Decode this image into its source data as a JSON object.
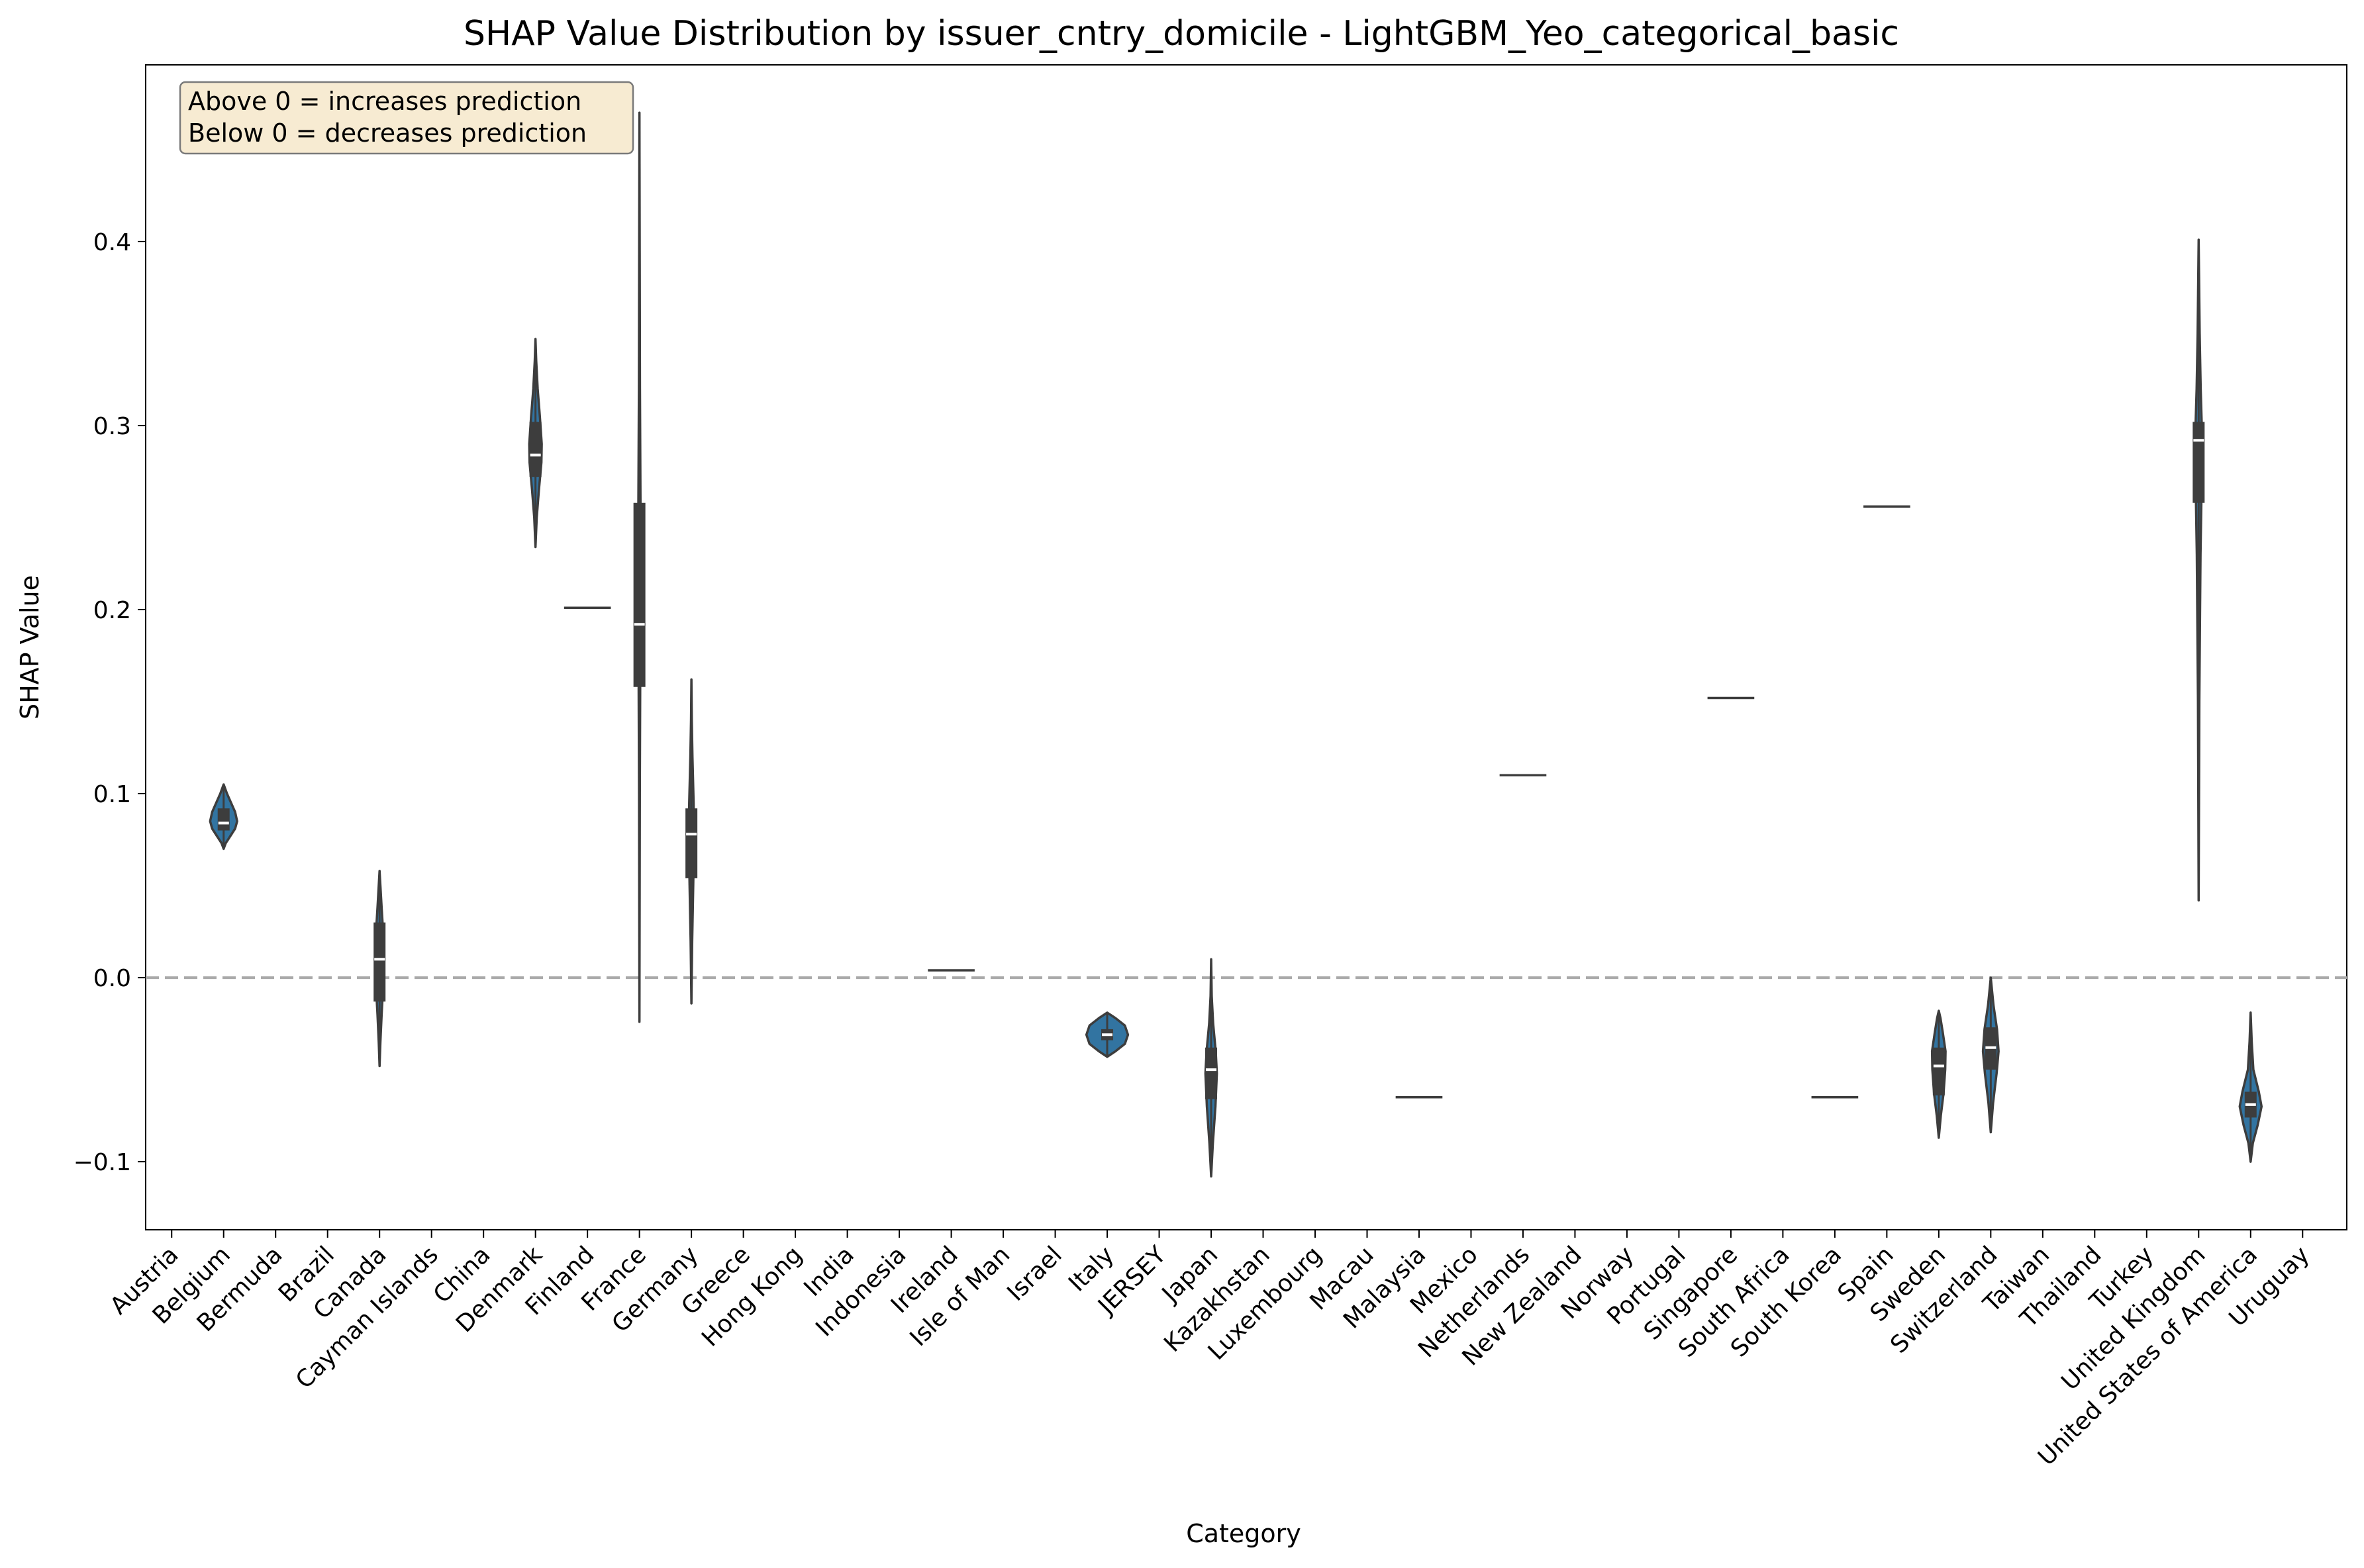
{
  "chart_data": {
    "type": "violin",
    "title": "SHAP Value Distribution by issuer_cntry_domicile - LightGBM_Yeo_categorical_basic",
    "xlabel": "Category",
    "ylabel": "SHAP Value",
    "ylim": [
      -0.137,
      0.496
    ],
    "yticks": [
      -0.1,
      0.0,
      0.1,
      0.2,
      0.3,
      0.4
    ],
    "ytick_labels": [
      "−0.1",
      "0.0",
      "0.1",
      "0.2",
      "0.3",
      "0.4"
    ],
    "reference_line": {
      "y": 0.0,
      "style": "dashed",
      "color": "#aaaaaa"
    },
    "annotation": {
      "line1": "Above 0 = increases prediction",
      "line2": "Below 0 = decreases prediction",
      "placement": "top-left"
    },
    "colors": {
      "violin": "#3274a1",
      "box": "#3d3d3d",
      "median": "#ffffff",
      "annotation_bg": "#f7ebd2"
    },
    "categories": [
      "Austria",
      "Belgium",
      "Bermuda",
      "Brazil",
      "Canada",
      "Cayman Islands",
      "China",
      "Denmark",
      "Finland",
      "France",
      "Germany",
      "Greece",
      "Hong Kong",
      "India",
      "Indonesia",
      "Ireland",
      "Isle of Man",
      "Israel",
      "Italy",
      "JERSEY",
      "Japan",
      "Kazakhstan",
      "Luxembourg",
      "Macau",
      "Malaysia",
      "Mexico",
      "Netherlands",
      "New Zealand",
      "Norway",
      "Portugal",
      "Singapore",
      "South Africa",
      "South Korea",
      "Spain",
      "Sweden",
      "Switzerland",
      "Taiwan",
      "Thailand",
      "Turkey",
      "United Kingdom",
      "United States of America",
      "Uruguay"
    ],
    "distributions": [
      {
        "category": "Belgium",
        "shape": "violin",
        "min": 0.07,
        "max": 0.105,
        "q1": 0.08,
        "median": 0.084,
        "q3": 0.092,
        "maxw": 0.52,
        "profile": [
          [
            0.07,
            0
          ],
          [
            0.073,
            0.15
          ],
          [
            0.077,
            0.5
          ],
          [
            0.081,
            0.85
          ],
          [
            0.085,
            1
          ],
          [
            0.09,
            0.85
          ],
          [
            0.095,
            0.55
          ],
          [
            0.1,
            0.25
          ],
          [
            0.105,
            0
          ]
        ]
      },
      {
        "category": "Canada",
        "shape": "violin",
        "min": -0.048,
        "max": 0.058,
        "q1": -0.013,
        "median": 0.01,
        "q3": 0.03,
        "maxw": 0.16,
        "profile": [
          [
            -0.048,
            0
          ],
          [
            -0.035,
            0.2
          ],
          [
            -0.02,
            0.5
          ],
          [
            -0.005,
            0.85
          ],
          [
            0.01,
            1
          ],
          [
            0.025,
            0.85
          ],
          [
            0.038,
            0.5
          ],
          [
            0.05,
            0.2
          ],
          [
            0.058,
            0
          ]
        ]
      },
      {
        "category": "Denmark",
        "shape": "violin",
        "min": 0.234,
        "max": 0.347,
        "q1": 0.272,
        "median": 0.284,
        "q3": 0.302,
        "maxw": 0.24,
        "profile": [
          [
            0.234,
            0
          ],
          [
            0.25,
            0.2
          ],
          [
            0.265,
            0.55
          ],
          [
            0.28,
            0.95
          ],
          [
            0.29,
            1
          ],
          [
            0.305,
            0.7
          ],
          [
            0.32,
            0.35
          ],
          [
            0.335,
            0.12
          ],
          [
            0.347,
            0
          ]
        ]
      },
      {
        "category": "Finland",
        "shape": "line",
        "value": 0.201,
        "width": 0.9
      },
      {
        "category": "France",
        "shape": "violin",
        "min": -0.024,
        "max": 0.47,
        "q1": 0.158,
        "median": 0.192,
        "q3": 0.258,
        "maxw": 0.1,
        "profile": [
          [
            -0.024,
            0
          ],
          [
            0.1,
            0.15
          ],
          [
            0.18,
            0.35
          ],
          [
            0.22,
            0.5
          ],
          [
            0.26,
            0.4
          ],
          [
            0.32,
            0.2
          ],
          [
            0.47,
            0
          ]
        ]
      },
      {
        "category": "Germany",
        "shape": "violin",
        "min": -0.014,
        "max": 0.162,
        "q1": 0.054,
        "median": 0.078,
        "q3": 0.092,
        "maxw": 0.1,
        "profile": [
          [
            -0.014,
            0
          ],
          [
            0.02,
            0.3
          ],
          [
            0.05,
            0.7
          ],
          [
            0.075,
            1
          ],
          [
            0.095,
            0.85
          ],
          [
            0.12,
            0.4
          ],
          [
            0.14,
            0.15
          ],
          [
            0.162,
            0
          ]
        ]
      },
      {
        "category": "Ireland",
        "shape": "line",
        "value": 0.004,
        "width": 0.9
      },
      {
        "category": "Italy",
        "shape": "violin",
        "min": -0.043,
        "max": -0.019,
        "q1": -0.034,
        "median": -0.031,
        "q3": -0.028,
        "maxw": 0.8,
        "profile": [
          [
            -0.043,
            0
          ],
          [
            -0.04,
            0.4
          ],
          [
            -0.036,
            0.85
          ],
          [
            -0.031,
            1
          ],
          [
            -0.026,
            0.85
          ],
          [
            -0.022,
            0.4
          ],
          [
            -0.019,
            0
          ]
        ]
      },
      {
        "category": "Japan",
        "shape": "violin",
        "min": -0.108,
        "max": 0.01,
        "q1": -0.066,
        "median": -0.05,
        "q3": -0.038,
        "maxw": 0.22,
        "profile": [
          [
            -0.108,
            0
          ],
          [
            -0.09,
            0.3
          ],
          [
            -0.07,
            0.75
          ],
          [
            -0.052,
            1
          ],
          [
            -0.04,
            0.8
          ],
          [
            -0.025,
            0.35
          ],
          [
            -0.01,
            0.1
          ],
          [
            0.01,
            0
          ]
        ]
      },
      {
        "category": "Malaysia",
        "shape": "line",
        "value": -0.065,
        "width": 0.9
      },
      {
        "category": "Netherlands",
        "shape": "line",
        "value": 0.11,
        "width": 0.9
      },
      {
        "category": "Singapore",
        "shape": "line",
        "value": 0.152,
        "width": 0.9
      },
      {
        "category": "South Korea",
        "shape": "line",
        "value": -0.065,
        "width": 0.9
      },
      {
        "category": "Spain",
        "shape": "line",
        "value": 0.256,
        "width": 0.9
      },
      {
        "category": "Sweden",
        "shape": "violin",
        "min": -0.087,
        "max": -0.018,
        "q1": -0.064,
        "median": -0.048,
        "q3": -0.038,
        "maxw": 0.26,
        "profile": [
          [
            -0.087,
            0
          ],
          [
            -0.075,
            0.3
          ],
          [
            -0.063,
            0.7
          ],
          [
            -0.05,
            0.95
          ],
          [
            -0.04,
            1
          ],
          [
            -0.03,
            0.6
          ],
          [
            -0.022,
            0.25
          ],
          [
            -0.018,
            0
          ]
        ]
      },
      {
        "category": "Switzerland",
        "shape": "violin",
        "min": -0.084,
        "max": 0.0,
        "q1": -0.05,
        "median": -0.038,
        "q3": -0.027,
        "maxw": 0.3,
        "profile": [
          [
            -0.084,
            0
          ],
          [
            -0.068,
            0.3
          ],
          [
            -0.052,
            0.75
          ],
          [
            -0.04,
            1
          ],
          [
            -0.028,
            0.8
          ],
          [
            -0.015,
            0.35
          ],
          [
            0.0,
            0
          ]
        ]
      },
      {
        "category": "United Kingdom",
        "shape": "violin",
        "min": 0.042,
        "max": 0.401,
        "q1": 0.258,
        "median": 0.292,
        "q3": 0.302,
        "maxw": 0.13,
        "profile": [
          [
            0.042,
            0
          ],
          [
            0.15,
            0.2
          ],
          [
            0.23,
            0.55
          ],
          [
            0.27,
            0.9
          ],
          [
            0.295,
            1
          ],
          [
            0.32,
            0.6
          ],
          [
            0.35,
            0.3
          ],
          [
            0.401,
            0
          ]
        ]
      },
      {
        "category": "United States of America",
        "shape": "violin",
        "min": -0.1,
        "max": -0.019,
        "q1": -0.076,
        "median": -0.069,
        "q3": -0.062,
        "maxw": 0.42,
        "profile": [
          [
            -0.1,
            0
          ],
          [
            -0.09,
            0.2
          ],
          [
            -0.08,
            0.65
          ],
          [
            -0.07,
            1
          ],
          [
            -0.062,
            0.75
          ],
          [
            -0.05,
            0.25
          ],
          [
            -0.035,
            0.1
          ],
          [
            -0.019,
            0
          ]
        ]
      }
    ]
  }
}
